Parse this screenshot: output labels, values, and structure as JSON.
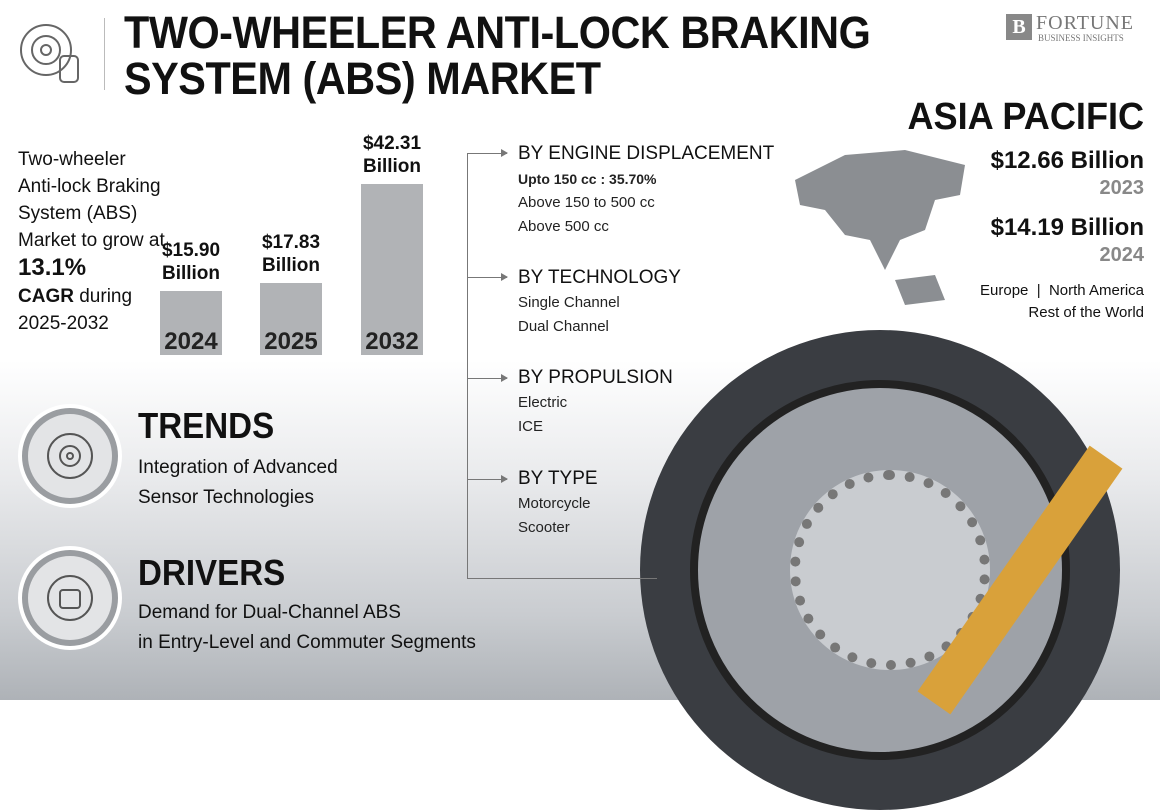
{
  "header": {
    "title_line1": "TWO-WHEELER ANTI-LOCK BRAKING",
    "title_line2": "SYSTEM (ABS) MARKET",
    "logo_big": "FORTUNE",
    "logo_small": "BUSINESS INSIGHTS"
  },
  "intro": {
    "line1": "Two-wheeler Anti-lock Braking System (ABS) Market to grow at",
    "cagr": "13.1%",
    "cagr_label": "CAGR",
    "line2": " during 2025-2032"
  },
  "chart_data": {
    "type": "bar",
    "categories": [
      "2024",
      "2025",
      "2032"
    ],
    "values": [
      15.9,
      17.83,
      42.31
    ],
    "labels": [
      "$15.90 Billion",
      "$17.83 Billion",
      "$42.31 Billion"
    ],
    "unit": "USD Billion",
    "color": "#b1b3b6"
  },
  "trends": {
    "title": "TRENDS",
    "line1": "Integration of Advanced",
    "line2": "Sensor Technologies"
  },
  "drivers": {
    "title": "DRIVERS",
    "line1": "Demand for Dual-Channel ABS",
    "line2": "in Entry-Level and Commuter Segments"
  },
  "segments": [
    {
      "title": "BY ENGINE DISPLACEMENT",
      "highlight": "Upto 150 cc : 35.70%",
      "items": [
        "Above 150 to 500 cc",
        "Above 500 cc"
      ]
    },
    {
      "title": "BY TECHNOLOGY",
      "items": [
        "Single Channel",
        "Dual Channel"
      ]
    },
    {
      "title": "BY PROPULSION",
      "items": [
        "Electric",
        "ICE"
      ]
    },
    {
      "title": "BY TYPE",
      "items": [
        "Motorcycle",
        "Scooter"
      ]
    }
  ],
  "region": {
    "name": "ASIA PACIFIC",
    "value1": "$12.66 Billion",
    "year1": "2023",
    "value2": "$14.19 Billion",
    "year2": "2024",
    "others1": "Europe  |  North America",
    "others2": "Rest of the World"
  }
}
